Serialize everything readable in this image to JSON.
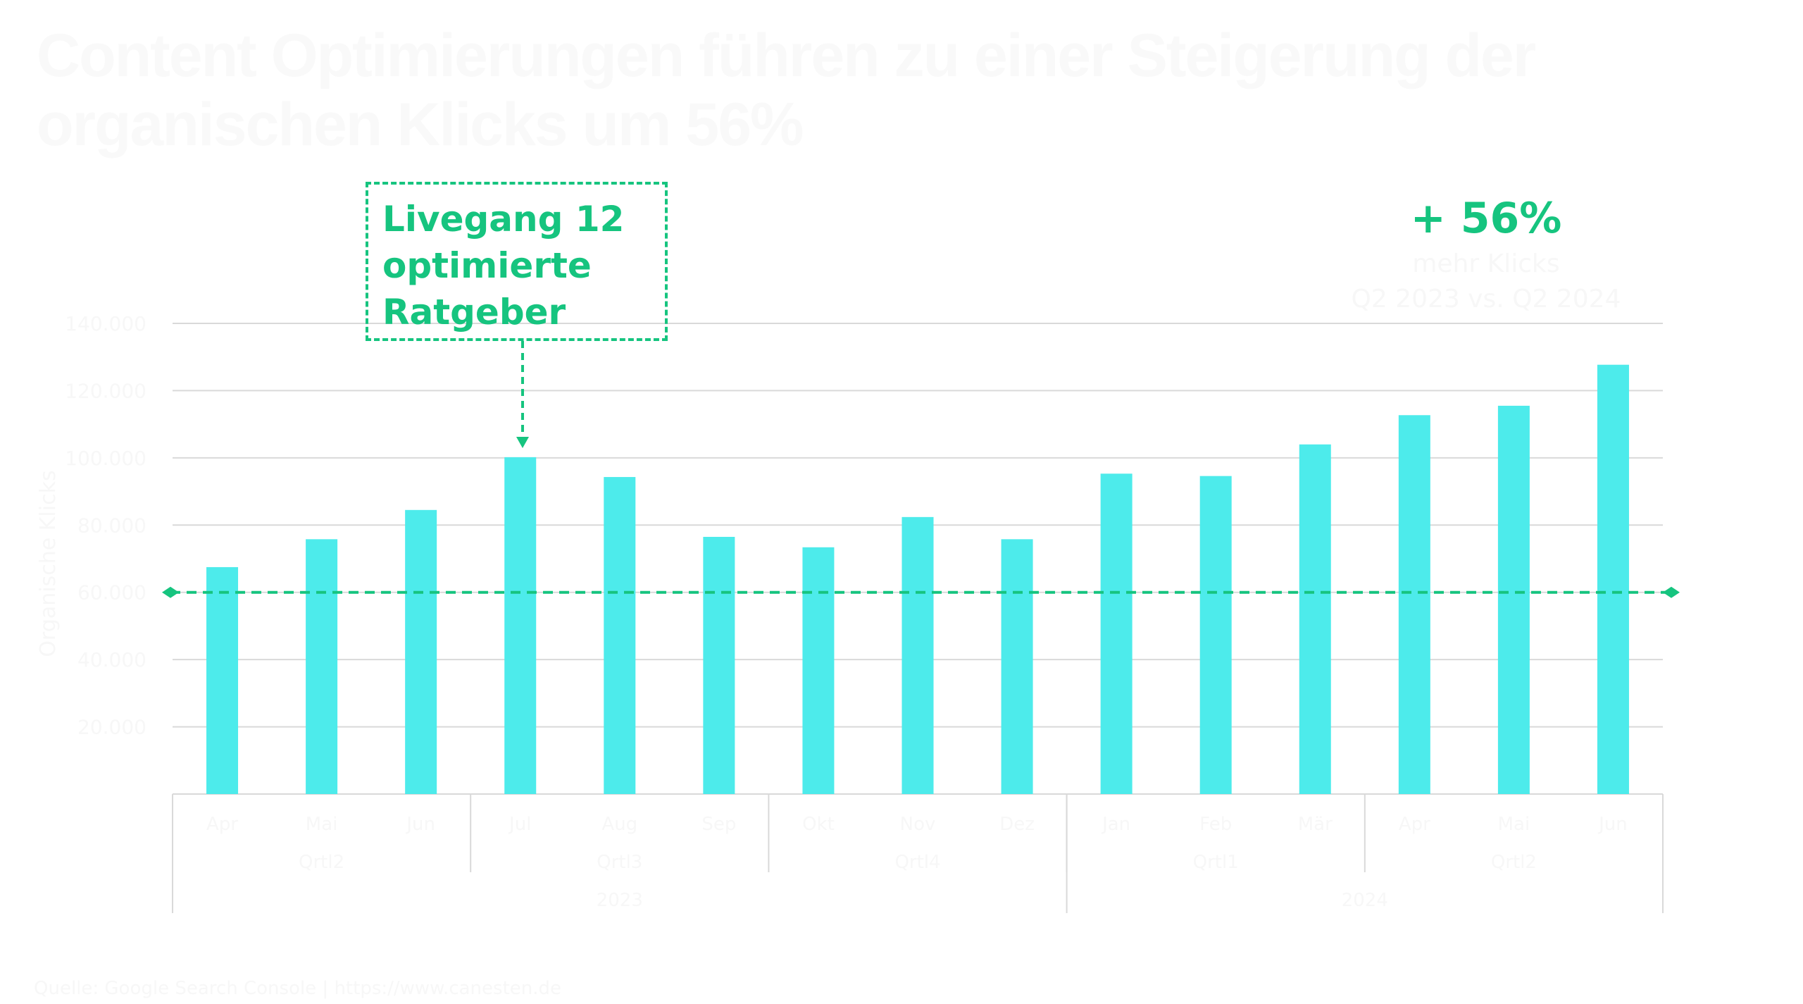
{
  "title": {
    "line1": "Content Optimierungen führen zu einer Steigerung der",
    "line2": "organischen Klicks um 56%"
  },
  "annotation": {
    "lines": [
      "Livegang 12",
      "optimierte",
      "Ratgeber"
    ]
  },
  "kpi": {
    "value": "+ 56%",
    "line1": "mehr Klicks",
    "line2": "Q2 2023 vs. Q2 2024"
  },
  "footer": "Quelle: Google Search Console | https://www.canesten.de",
  "colors": {
    "bar": "#4debeb",
    "accent": "#16c47f",
    "grid": "#d9d9d9"
  },
  "chart_data": {
    "type": "bar",
    "ylabel": "Organische Klicks",
    "ylim": [
      0,
      140000
    ],
    "yticks": [
      20000,
      40000,
      60000,
      80000,
      100000,
      120000,
      140000
    ],
    "ytick_labels": [
      "20.000",
      "40.000",
      "60.000",
      "80.000",
      "100.000",
      "120.000",
      "140.000"
    ],
    "categories": [
      "Apr",
      "Mai",
      "Jun",
      "Jul",
      "Aug",
      "Sep",
      "Okt",
      "Nov",
      "Dez",
      "Jan",
      "Feb",
      "Mär",
      "Apr",
      "Mai",
      "Jun"
    ],
    "quarters": [
      {
        "label": "Qrtl2",
        "span": 3
      },
      {
        "label": "Qrtl3",
        "span": 3
      },
      {
        "label": "Qrtl4",
        "span": 3
      },
      {
        "label": "Qrtl1",
        "span": 3
      },
      {
        "label": "Qrtl2",
        "span": 3
      }
    ],
    "years": [
      {
        "label": "2023",
        "span": 9
      },
      {
        "label": "2024",
        "span": 6
      }
    ],
    "values": [
      67500,
      75800,
      84500,
      100200,
      94300,
      76500,
      73400,
      82400,
      75800,
      95300,
      94600,
      104000,
      112700,
      115500,
      127700
    ],
    "reference_line": 60000,
    "annotation_index": 3,
    "grid": true
  }
}
